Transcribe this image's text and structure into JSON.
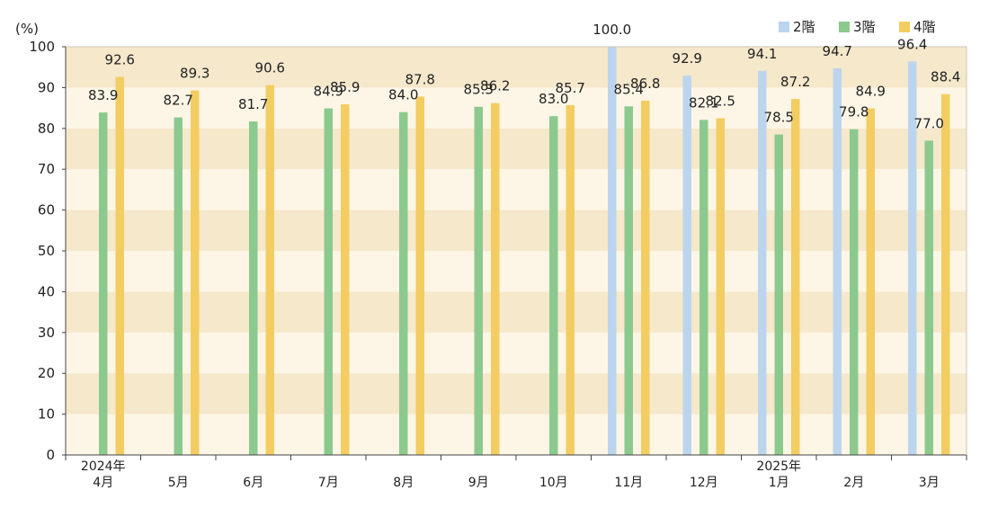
{
  "chart_data": {
    "type": "bar",
    "ylabel": "(%)",
    "ylim": [
      0,
      100
    ],
    "yticks": [
      0,
      10,
      20,
      30,
      40,
      50,
      60,
      70,
      80,
      90,
      100
    ],
    "legend_position": "top-right",
    "categories": [
      {
        "year": "2024年",
        "month": "4月"
      },
      {
        "year": "",
        "month": "5月"
      },
      {
        "year": "",
        "month": "6月"
      },
      {
        "year": "",
        "month": "7月"
      },
      {
        "year": "",
        "month": "8月"
      },
      {
        "year": "",
        "month": "9月"
      },
      {
        "year": "",
        "month": "10月"
      },
      {
        "year": "",
        "month": "11月"
      },
      {
        "year": "",
        "month": "12月"
      },
      {
        "year": "2025年",
        "month": "1月"
      },
      {
        "year": "",
        "month": "2月"
      },
      {
        "year": "",
        "month": "3月"
      }
    ],
    "series": [
      {
        "name": "2階",
        "color": "#bcd5ee",
        "values": [
          null,
          null,
          null,
          null,
          null,
          null,
          null,
          100.0,
          92.9,
          94.1,
          94.7,
          96.4
        ],
        "labels": [
          "",
          "",
          "",
          "",
          "",
          "",
          "",
          "100.0",
          "92.9",
          "94.1",
          "94.7",
          "96.4"
        ]
      },
      {
        "name": "3階",
        "color": "#8cc98e",
        "values": [
          83.9,
          82.7,
          81.7,
          84.9,
          84.0,
          85.3,
          83.0,
          85.4,
          82.1,
          78.5,
          79.8,
          77.0
        ],
        "labels": [
          "83.9",
          "82.7",
          "81.7",
          "84.9",
          "84.0",
          "85.3",
          "83.0",
          "85.4",
          "82.1",
          "78.5",
          "79.8",
          "77.0"
        ]
      },
      {
        "name": "4階",
        "color": "#f3cd62",
        "values": [
          92.6,
          89.3,
          90.6,
          85.9,
          87.8,
          86.2,
          85.7,
          86.8,
          82.5,
          87.2,
          84.9,
          88.4
        ],
        "labels": [
          "92.6",
          "89.3",
          "90.6",
          "85.9",
          "87.8",
          "86.2",
          "85.7",
          "86.8",
          "82.5",
          "87.2",
          "84.9",
          "88.4"
        ]
      }
    ],
    "band_colors": [
      "#fdf6e6",
      "#f5e8cb"
    ]
  }
}
